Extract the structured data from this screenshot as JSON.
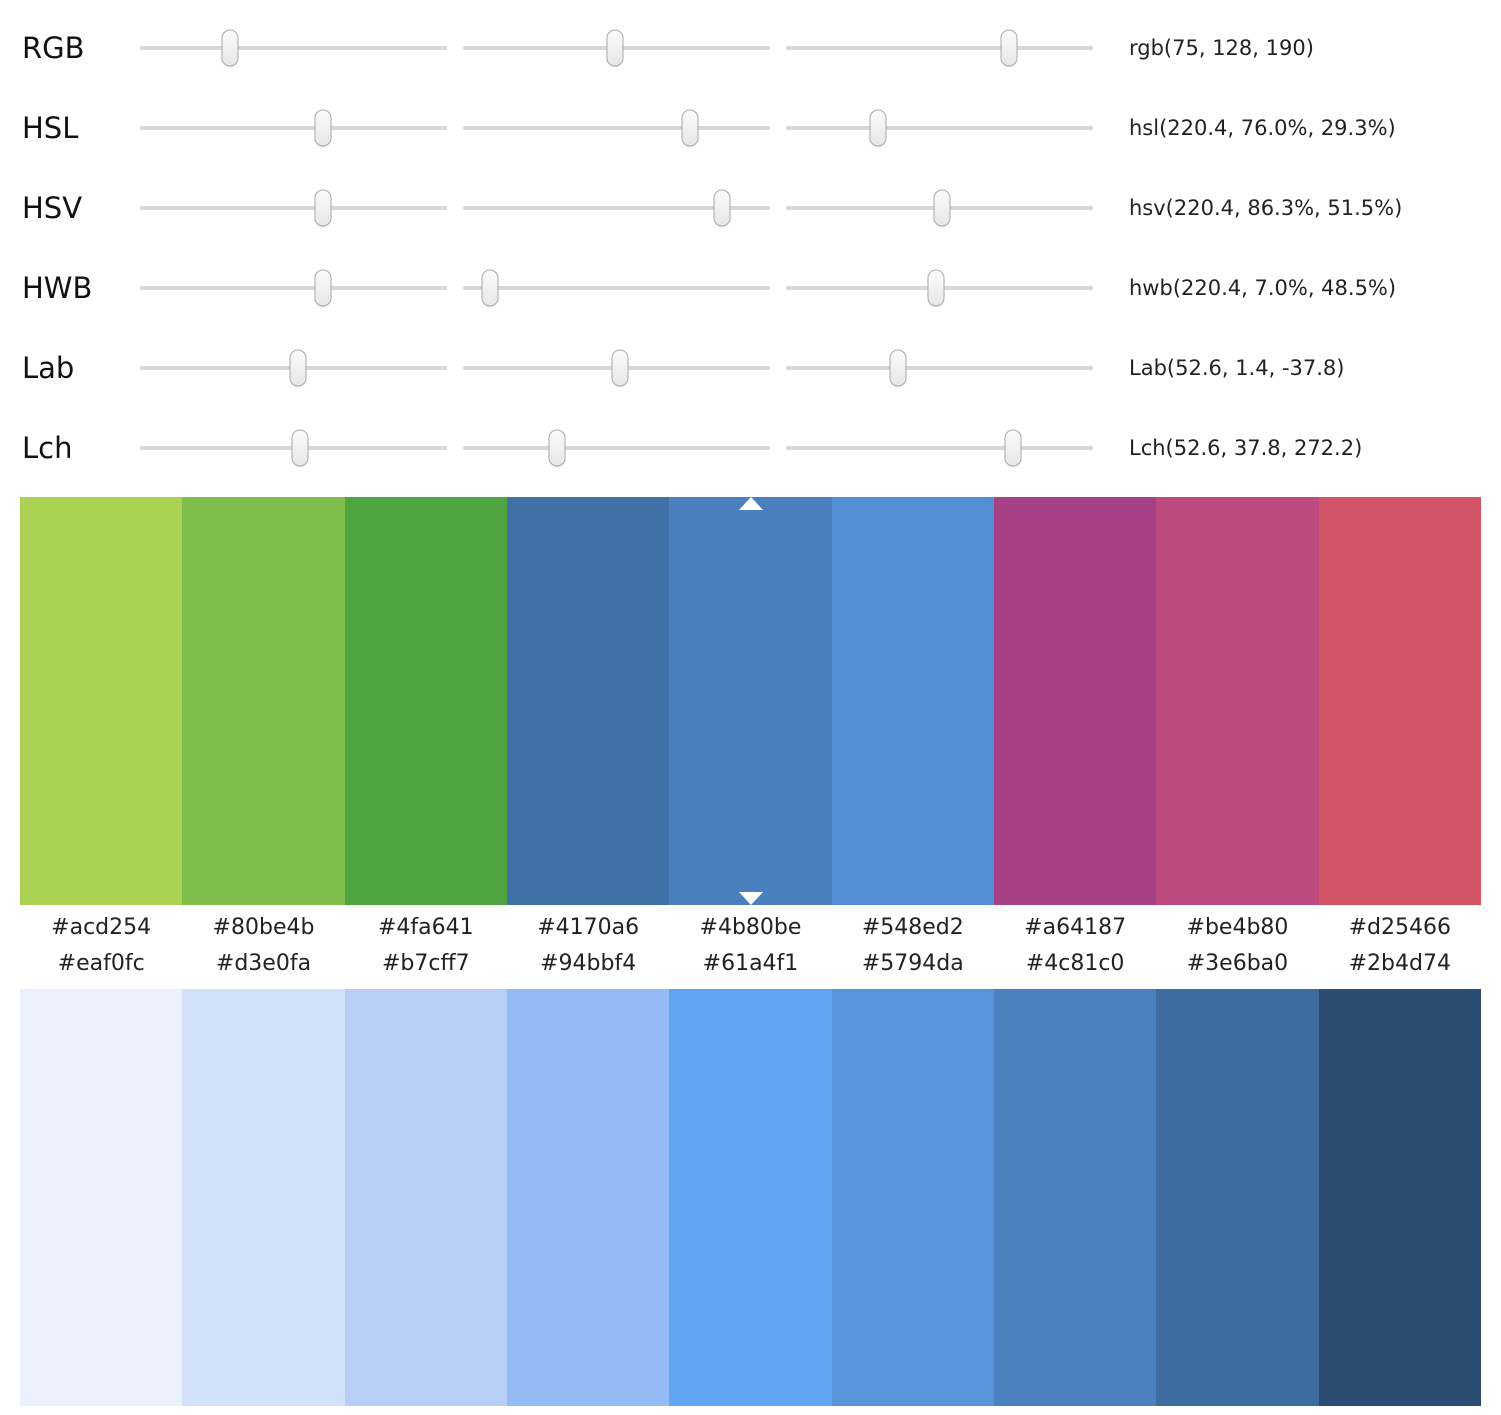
{
  "app": {
    "background": "#ffffff",
    "marker_color": "#ffffff"
  },
  "sliders": {
    "rows": [
      {
        "label": "RGB",
        "value_text": "rgb(75, 128, 190)",
        "thumbs": [
          29.3,
          49.5,
          72.6
        ]
      },
      {
        "label": "HSL",
        "value_text": "hsl(220.4, 76.0%, 29.3%)",
        "thumbs": [
          59.6,
          73.9,
          30.0
        ]
      },
      {
        "label": "HSV",
        "value_text": "hsv(220.4, 86.3%, 51.5%)",
        "thumbs": [
          59.6,
          84.4,
          50.8
        ]
      },
      {
        "label": "HWB",
        "value_text": "hwb(220.4, 7.0%, 48.5%)",
        "thumbs": [
          59.6,
          8.8,
          48.9
        ]
      },
      {
        "label": "Lab",
        "value_text": "Lab(52.6, 1.4, -37.8)",
        "thumbs": [
          51.5,
          51.1,
          36.5
        ]
      },
      {
        "label": "Lch",
        "value_text": "Lch(52.6, 37.8, 272.2)",
        "thumbs": [
          52.1,
          30.6,
          73.9
        ]
      }
    ]
  },
  "hue_scale": {
    "selected_index": 4,
    "colors": [
      "#acd254",
      "#80be4b",
      "#4fa641",
      "#4170a6",
      "#4b80be",
      "#548ed2",
      "#a64187",
      "#be4b80",
      "#d25466"
    ]
  },
  "tint_scale": {
    "colors": [
      "#eaf0fc",
      "#d3e0fa",
      "#b7cff7",
      "#94bbf4",
      "#61a4f1",
      "#5794da",
      "#4c81c0",
      "#3e6ba0",
      "#2b4d74"
    ]
  }
}
